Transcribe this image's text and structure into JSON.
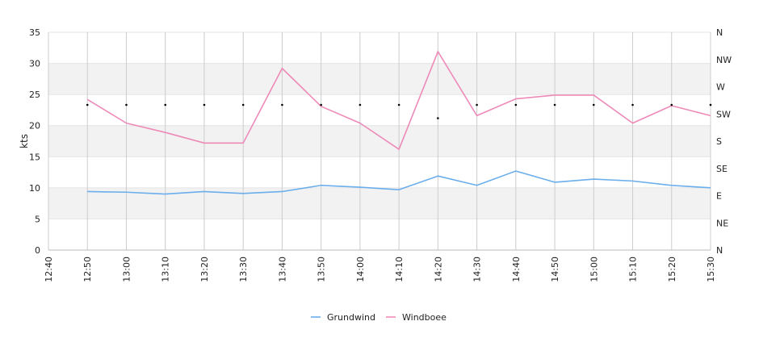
{
  "chart_data": {
    "type": "line",
    "title": "",
    "xlabel": "",
    "ylabel": "kts",
    "ylim": [
      0,
      35
    ],
    "yticks": [
      0,
      5,
      10,
      15,
      20,
      25,
      30,
      35
    ],
    "x_tick_labels": [
      "12:40",
      "12:50",
      "13:00",
      "13:10",
      "13:20",
      "13:30",
      "13:40",
      "13:50",
      "14:00",
      "14:10",
      "14:20",
      "14:30",
      "14:40",
      "14:50",
      "15:00",
      "15:10",
      "15:20",
      "15:30"
    ],
    "y2_tick_labels": [
      "N",
      "NE",
      "E",
      "SE",
      "S",
      "SW",
      "W",
      "NW",
      "N"
    ],
    "grid": true,
    "legend_position": "bottom",
    "x": [
      "12:50",
      "13:00",
      "13:10",
      "13:20",
      "13:30",
      "13:40",
      "13:50",
      "14:00",
      "14:10",
      "14:20",
      "14:30",
      "14:40",
      "14:50",
      "15:00",
      "15:10",
      "15:20",
      "15:30"
    ],
    "series": [
      {
        "name": "Grundwind",
        "color": "#6aaeeb",
        "values": [
          9.4,
          9.3,
          9.0,
          9.4,
          9.1,
          9.4,
          10.4,
          10.1,
          9.7,
          11.9,
          10.4,
          12.7,
          10.9,
          11.4,
          11.1,
          10.4,
          10.0
        ]
      },
      {
        "name": "Windboee",
        "color": "#ee8ab8",
        "values": [
          24.2,
          20.4,
          18.9,
          17.2,
          17.2,
          29.2,
          23.1,
          20.4,
          16.2,
          31.9,
          21.6,
          24.3,
          24.9,
          24.9,
          20.4,
          23.2,
          21.6
        ]
      }
    ],
    "direction_points": [
      {
        "x": "12:50",
        "dir_deg": 240
      },
      {
        "x": "13:00",
        "dir_deg": 240
      },
      {
        "x": "13:10",
        "dir_deg": 240
      },
      {
        "x": "13:20",
        "dir_deg": 240
      },
      {
        "x": "13:30",
        "dir_deg": 240
      },
      {
        "x": "13:40",
        "dir_deg": 240
      },
      {
        "x": "13:50",
        "dir_deg": 240
      },
      {
        "x": "14:00",
        "dir_deg": 240
      },
      {
        "x": "14:10",
        "dir_deg": 240
      },
      {
        "x": "14:20",
        "dir_deg": 218
      },
      {
        "x": "14:30",
        "dir_deg": 240
      },
      {
        "x": "14:40",
        "dir_deg": 240
      },
      {
        "x": "14:50",
        "dir_deg": 240
      },
      {
        "x": "15:00",
        "dir_deg": 240
      },
      {
        "x": "15:10",
        "dir_deg": 240
      },
      {
        "x": "15:20",
        "dir_deg": 240
      },
      {
        "x": "15:30",
        "dir_deg": 240
      }
    ],
    "band_color": "#f2f2f2",
    "grid_color": "#cccccc",
    "direction_color": "#000000"
  },
  "legend": {
    "items": [
      {
        "label": "Grundwind",
        "color": "#6aaeeb"
      },
      {
        "label": "Windboee",
        "color": "#ee8ab8"
      }
    ]
  }
}
